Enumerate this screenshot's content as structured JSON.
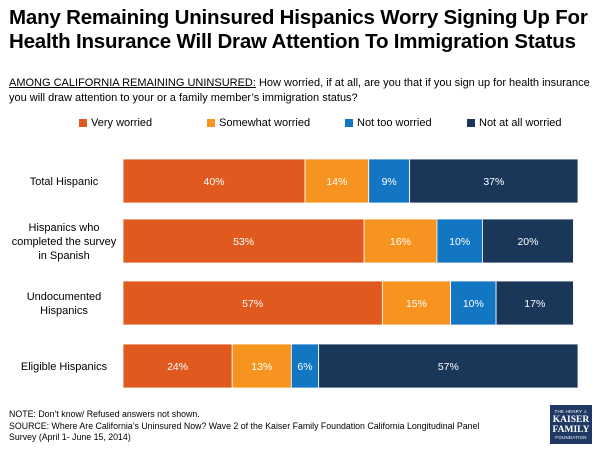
{
  "title": "Many Remaining Uninsured Hispanics Worry Signing Up For Health Insurance Will Draw Attention To Immigration Status",
  "subtitle": {
    "lead": "AMONG CALIFORNIA REMAINING UNINSURED:",
    "question": " How worried, if at all, are you that if you sign up for health insurance you will draw attention to your or a family member’s immigration status?"
  },
  "colors": {
    "very": "#e05a1f",
    "somewhat": "#f79420",
    "not_too": "#1276c3",
    "not_at_all": "#1a3659"
  },
  "chart_data": {
    "type": "bar",
    "orientation": "horizontal-stacked",
    "categories": [
      "Total Hispanic",
      "Hispanics who completed the survey in Spanish",
      "Undocumented Hispanics",
      "Eligible Hispanics"
    ],
    "category_lines": [
      [
        "Total Hispanic"
      ],
      [
        "Hispanics who",
        "completed the survey",
        "in Spanish"
      ],
      [
        "Undocumented",
        "Hispanics"
      ],
      [
        "Eligible Hispanics"
      ]
    ],
    "series": [
      {
        "name": "Very worried",
        "color_key": "very",
        "values": [
          40,
          53,
          57,
          24
        ]
      },
      {
        "name": "Somewhat worried",
        "color_key": "somewhat",
        "values": [
          14,
          16,
          15,
          13
        ]
      },
      {
        "name": "Not too worried",
        "color_key": "not_too",
        "values": [
          9,
          10,
          10,
          6
        ]
      },
      {
        "name": "Not at all worried",
        "color_key": "not_at_all",
        "values": [
          37,
          20,
          17,
          57
        ]
      }
    ],
    "value_suffix": "%",
    "xlim": [
      0,
      100
    ],
    "grid": false,
    "legend": "top"
  },
  "footer": {
    "note": "NOTE: Don’t know/ Refused answers not shown.",
    "source": "SOURCE: Where Are California’s Uninsured Now? Wave 2 of the Kaiser Family Foundation California Longitudinal Panel Survey (April 1- June 15, 2014)"
  },
  "logo": {
    "line1": "THE HENRY J.",
    "line2": "KAISER",
    "line3": "FAMILY",
    "line4": "FOUNDATION"
  }
}
